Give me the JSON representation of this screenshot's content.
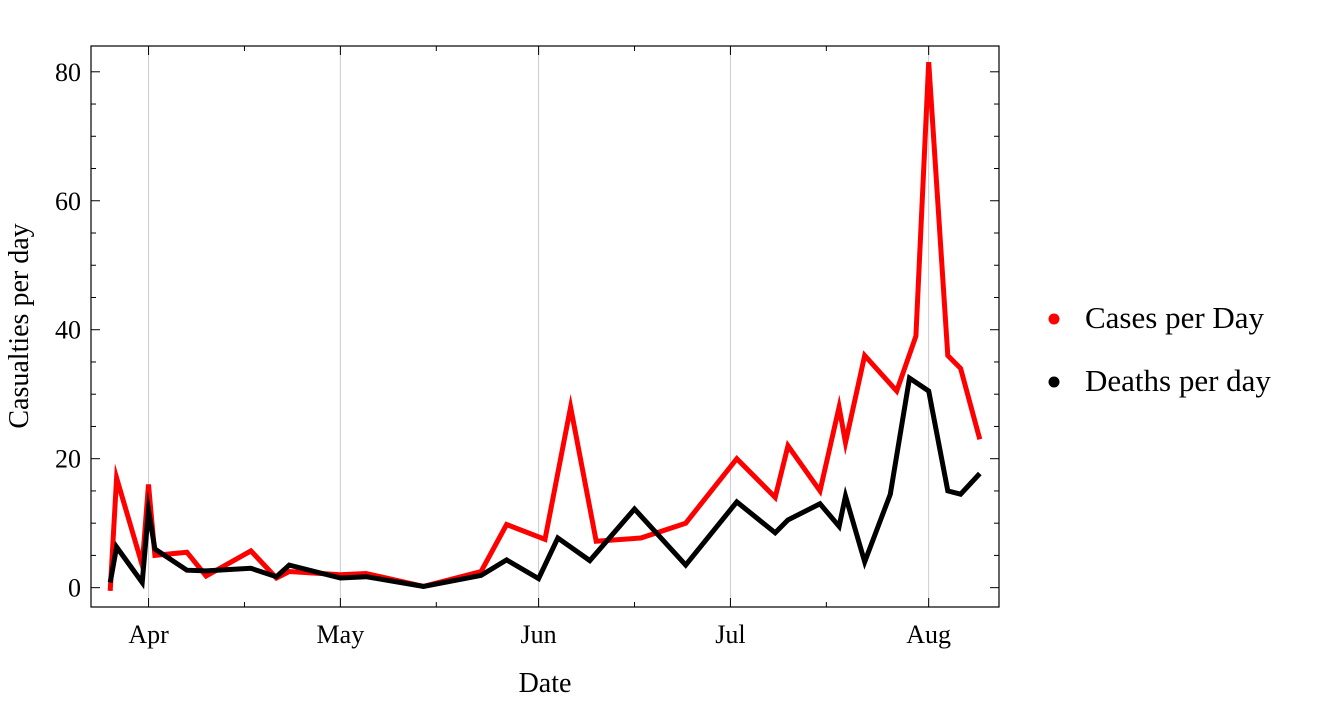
{
  "chart_data": {
    "type": "line",
    "xlabel": "Date",
    "ylabel": "Casualties per day",
    "x_ticks": [
      "Apr",
      "May",
      "Jun",
      "Jul",
      "Aug"
    ],
    "x_tick_dates": [
      "2020-04-01",
      "2020-05-01",
      "2020-06-01",
      "2020-07-01",
      "2020-08-01"
    ],
    "x_range": [
      "2020-03-23",
      "2020-08-12"
    ],
    "y_ticks": [
      "0",
      "20",
      "40",
      "60",
      "80"
    ],
    "y_tick_values": [
      0,
      20,
      40,
      60,
      80
    ],
    "ylim": [
      -3,
      84
    ],
    "grid": "vertical lines at month ticks",
    "legend_position": "right",
    "series": [
      {
        "name": "Cases per Day",
        "color": "#ff0000",
        "points": [
          [
            "2020-03-26",
            -0.5
          ],
          [
            "2020-03-27",
            17
          ],
          [
            "2020-03-31",
            3.5
          ],
          [
            "2020-04-01",
            16
          ],
          [
            "2020-04-02",
            5
          ],
          [
            "2020-04-07",
            5.5
          ],
          [
            "2020-04-10",
            1.8
          ],
          [
            "2020-04-17",
            5.7
          ],
          [
            "2020-04-21",
            1.5
          ],
          [
            "2020-04-23",
            2.5
          ],
          [
            "2020-05-01",
            2
          ],
          [
            "2020-05-05",
            2.2
          ],
          [
            "2020-05-14",
            0.2
          ],
          [
            "2020-05-23",
            2.5
          ],
          [
            "2020-05-27",
            9.8
          ],
          [
            "2020-06-02",
            7.5
          ],
          [
            "2020-06-06",
            28
          ],
          [
            "2020-06-10",
            7.2
          ],
          [
            "2020-06-17",
            7.7
          ],
          [
            "2020-06-24",
            10
          ],
          [
            "2020-07-02",
            20
          ],
          [
            "2020-07-08",
            14
          ],
          [
            "2020-07-10",
            22
          ],
          [
            "2020-07-15",
            15
          ],
          [
            "2020-07-18",
            28
          ],
          [
            "2020-07-19",
            22.5
          ],
          [
            "2020-07-22",
            36
          ],
          [
            "2020-07-27",
            30.5
          ],
          [
            "2020-07-30",
            39
          ],
          [
            "2020-08-01",
            81.5
          ],
          [
            "2020-08-04",
            36
          ],
          [
            "2020-08-06",
            34
          ],
          [
            "2020-08-09",
            23
          ]
        ]
      },
      {
        "name": "Deaths per day",
        "color": "#000000",
        "points": [
          [
            "2020-03-26",
            0.8
          ],
          [
            "2020-03-27",
            6.3
          ],
          [
            "2020-03-31",
            0.8
          ],
          [
            "2020-04-01",
            12
          ],
          [
            "2020-04-02",
            6
          ],
          [
            "2020-04-07",
            2.7
          ],
          [
            "2020-04-10",
            2.6
          ],
          [
            "2020-04-17",
            3
          ],
          [
            "2020-04-21",
            1.7
          ],
          [
            "2020-04-23",
            3.5
          ],
          [
            "2020-05-01",
            1.5
          ],
          [
            "2020-05-05",
            1.7
          ],
          [
            "2020-05-14",
            0.2
          ],
          [
            "2020-05-23",
            1.9
          ],
          [
            "2020-05-27",
            4.3
          ],
          [
            "2020-06-01",
            1.4
          ],
          [
            "2020-06-04",
            7.7
          ],
          [
            "2020-06-09",
            4.2
          ],
          [
            "2020-06-16",
            12.2
          ],
          [
            "2020-06-24",
            3.5
          ],
          [
            "2020-07-02",
            13.3
          ],
          [
            "2020-07-08",
            8.5
          ],
          [
            "2020-07-10",
            10.5
          ],
          [
            "2020-07-15",
            13
          ],
          [
            "2020-07-18",
            9.5
          ],
          [
            "2020-07-19",
            14.2
          ],
          [
            "2020-07-22",
            4
          ],
          [
            "2020-07-26",
            14.5
          ],
          [
            "2020-07-29",
            32.5
          ],
          [
            "2020-08-01",
            30.5
          ],
          [
            "2020-08-04",
            15
          ],
          [
            "2020-08-06",
            14.5
          ],
          [
            "2020-08-09",
            17.7
          ]
        ]
      }
    ]
  }
}
